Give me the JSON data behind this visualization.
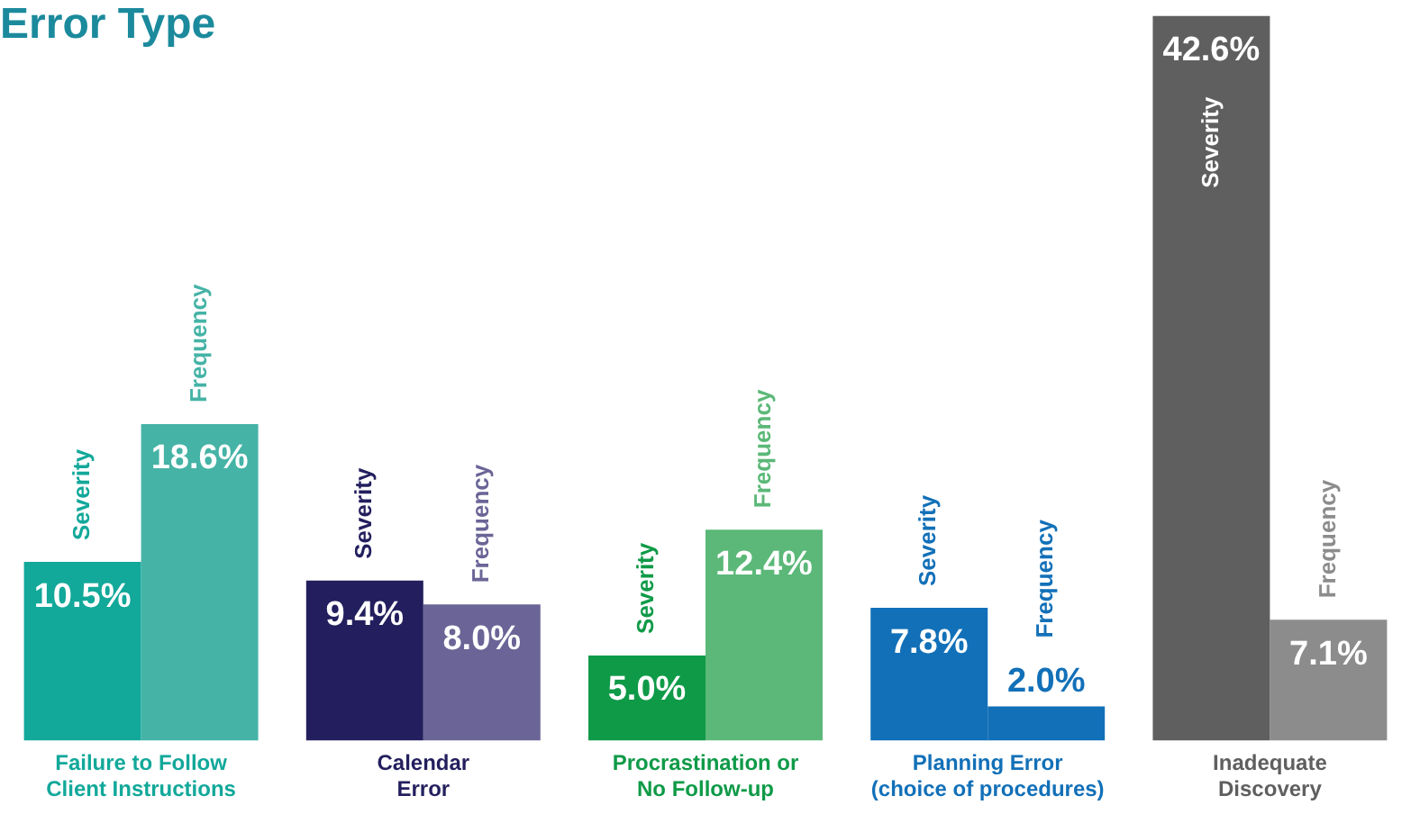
{
  "chart_data": {
    "type": "bar",
    "title": "Error Type",
    "categories": [
      "Failure to Follow\nClient Instructions",
      "Calendar\nError",
      "Procrastination or\nNo Follow-up",
      "Planning Error\n(choice of procedures)",
      "Inadequate\nDiscovery"
    ],
    "series": [
      {
        "name": "Severity",
        "colors": [
          "#12a89a",
          "#231f5e",
          "#0f9a48",
          "#1270b8",
          "#5f5f5f"
        ],
        "values": [
          10.5,
          9.4,
          5.0,
          7.8,
          42.6
        ],
        "value_labels": [
          "10.5%",
          "9.4%",
          "5.0%",
          "7.8%",
          "42.6%"
        ]
      },
      {
        "name": "Frequency",
        "colors": [
          "#45b3a6",
          "#6a6596",
          "#5bb878",
          "#1270b8",
          "#8c8c8c"
        ],
        "values": [
          18.6,
          8.0,
          12.4,
          2.0,
          7.1
        ],
        "value_labels": [
          "18.6%",
          "8.0%",
          "12.4%",
          "2.0%",
          "7.1%"
        ]
      }
    ],
    "legend": false,
    "grid": false
  }
}
